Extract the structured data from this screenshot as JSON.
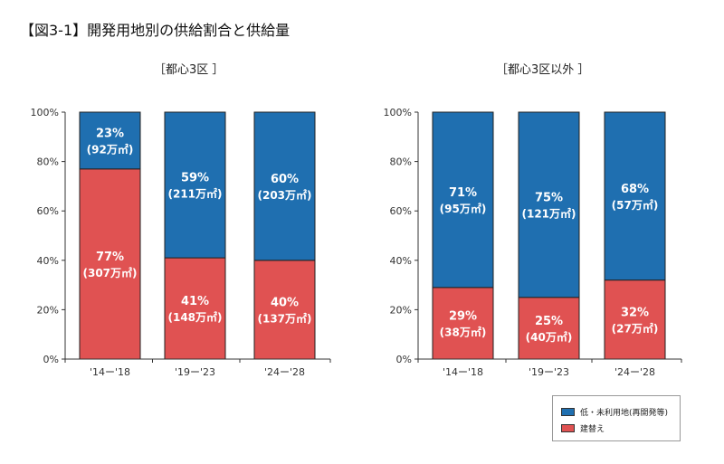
{
  "title": "【図3-1】開発用地別の供給割合と供給量",
  "colors": {
    "blue": "#1f6fb0",
    "red": "#e05252"
  },
  "legend": [
    {
      "label": "低・未利用地(再開発等)",
      "color": "#1f6fb0"
    },
    {
      "label": "建替え",
      "color": "#e05252"
    }
  ],
  "chart_data": [
    {
      "type": "bar",
      "stacked": true,
      "title": "［都心3区 ］",
      "categories": [
        "'14ー'18",
        "'19ー'23",
        "'24ー'28"
      ],
      "yticks": [
        "0%",
        "20%",
        "40%",
        "60%",
        "80%",
        "100%"
      ],
      "ylim": [
        0,
        100
      ],
      "series": [
        {
          "name": "建替え",
          "values": [
            77,
            41,
            40
          ],
          "labels": [
            "77%",
            "41%",
            "40%"
          ],
          "sublabels": [
            "(307万㎡)",
            "(148万㎡)",
            "(137万㎡)"
          ]
        },
        {
          "name": "低・未利用地(再開発等)",
          "values": [
            23,
            59,
            60
          ],
          "labels": [
            "23%",
            "59%",
            "60%"
          ],
          "sublabels": [
            "(92万㎡)",
            "(211万㎡)",
            "(203万㎡)"
          ]
        }
      ]
    },
    {
      "type": "bar",
      "stacked": true,
      "title": "［都心3区以外 ］",
      "categories": [
        "'14ー'18",
        "'19ー'23",
        "'24ー'28"
      ],
      "yticks": [
        "0%",
        "20%",
        "40%",
        "60%",
        "80%",
        "100%"
      ],
      "ylim": [
        0,
        100
      ],
      "series": [
        {
          "name": "建替え",
          "values": [
            29,
            25,
            32
          ],
          "labels": [
            "29%",
            "25%",
            "32%"
          ],
          "sublabels": [
            "(38万㎡)",
            "(40万㎡)",
            "(27万㎡)"
          ]
        },
        {
          "name": "低・未利用地(再開発等)",
          "values": [
            71,
            75,
            68
          ],
          "labels": [
            "71%",
            "75%",
            "68%"
          ],
          "sublabels": [
            "(95万㎡)",
            "(121万㎡)",
            "(57万㎡)"
          ]
        }
      ]
    }
  ]
}
